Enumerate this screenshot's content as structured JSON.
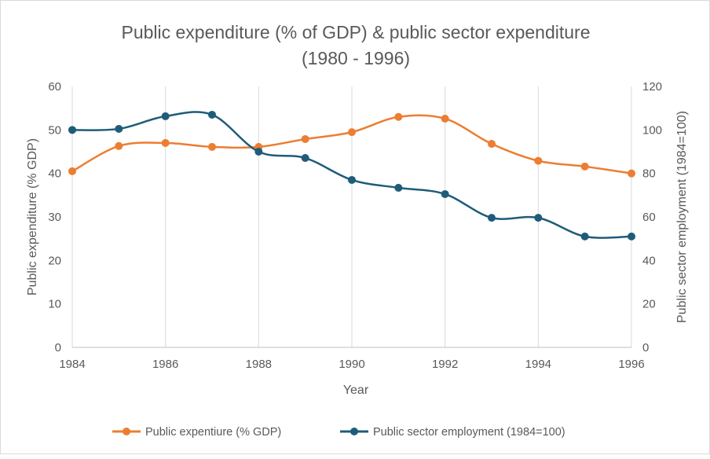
{
  "chart_data": {
    "type": "line",
    "title_lines": [
      "Public expenditure (% of GDP) & public sector expenditure",
      "(1980 - 1996)"
    ],
    "xlabel": "Year",
    "ylabel": "Public expenditure (% GDP)",
    "y2label": "Public sector employment (1984=100)",
    "x": [
      1984,
      1985,
      1986,
      1987,
      1988,
      1989,
      1990,
      1991,
      1992,
      1993,
      1994,
      1995,
      1996
    ],
    "xticks": [
      "1984",
      "1986",
      "1988",
      "1990",
      "1992",
      "1994",
      "1996"
    ],
    "ylim": [
      0,
      60
    ],
    "yticks": [
      "0",
      "10",
      "20",
      "30",
      "40",
      "50",
      "60"
    ],
    "y2lim": [
      0,
      120
    ],
    "y2ticks": [
      "0",
      "20",
      "40",
      "60",
      "80",
      "100",
      "120"
    ],
    "grid": "vertical",
    "legend_position": "bottom",
    "series": [
      {
        "name": "Public expentiure (% GDP)",
        "axis": "left",
        "color": "#ED7D31",
        "values": [
          40.5,
          46.3,
          47.0,
          46.1,
          46.1,
          47.9,
          49.5,
          53.0,
          52.6,
          46.8,
          42.9,
          41.6,
          40.0
        ]
      },
      {
        "name": "Public sector employment (1984=100)",
        "axis": "right",
        "color": "#1F5C7A",
        "values": [
          100,
          100.5,
          106.3,
          107,
          90,
          87.1,
          77,
          73.4,
          70.5,
          59.6,
          59.6,
          51,
          51
        ]
      }
    ]
  }
}
